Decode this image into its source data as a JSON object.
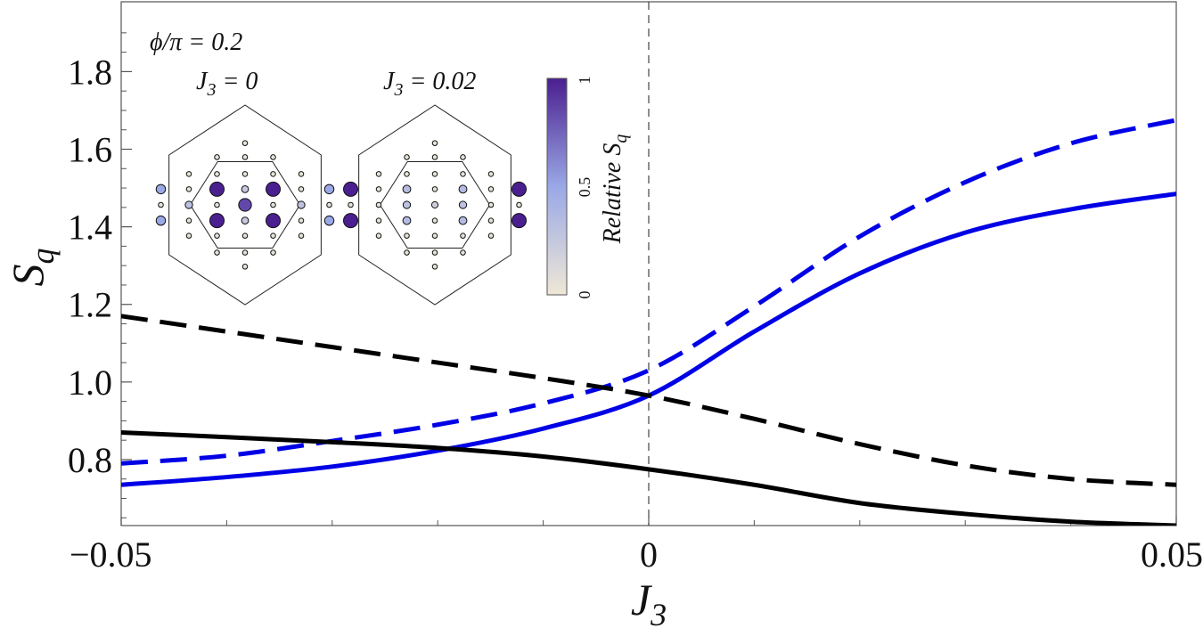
{
  "chart_data": {
    "type": "line",
    "xlabel": "J",
    "xlabel_sub": "3",
    "ylabel": "S",
    "ylabel_sub": "q",
    "xlim": [
      -0.05,
      0.05
    ],
    "ylim": [
      0.63,
      1.98
    ],
    "x_ticks": [
      -0.05,
      0,
      0.05
    ],
    "x_tick_labels": [
      "−0.05",
      "0",
      "0.05"
    ],
    "y_ticks": [
      0.8,
      1.0,
      1.2,
      1.4,
      1.6,
      1.8
    ],
    "y_tick_labels": [
      "0.8",
      "1.0",
      "1.2",
      "1.4",
      "1.6",
      "1.8"
    ],
    "grid": false,
    "reference_line": {
      "x": 0,
      "style": "dashed"
    },
    "series": [
      {
        "color": "#0000e6",
        "dash": "solid",
        "x": [
          -0.05,
          -0.04,
          -0.03,
          -0.02,
          -0.01,
          0,
          0.01,
          0.02,
          0.03,
          0.04,
          0.05
        ],
        "y": [
          0.735,
          0.755,
          0.782,
          0.823,
          0.88,
          0.965,
          1.13,
          1.28,
          1.385,
          1.445,
          1.485
        ]
      },
      {
        "color": "#0000e6",
        "dash": "dashed",
        "x": [
          -0.05,
          -0.04,
          -0.03,
          -0.02,
          -0.01,
          0,
          0.01,
          0.02,
          0.03,
          0.04,
          0.05
        ],
        "y": [
          0.79,
          0.81,
          0.848,
          0.89,
          0.945,
          1.03,
          1.195,
          1.375,
          1.515,
          1.615,
          1.675
        ]
      },
      {
        "color": "#000000",
        "dash": "solid",
        "x": [
          -0.05,
          -0.04,
          -0.03,
          -0.02,
          -0.01,
          0,
          0.01,
          0.02,
          0.03,
          0.04,
          0.05
        ],
        "y": [
          0.87,
          0.858,
          0.845,
          0.83,
          0.808,
          0.775,
          0.735,
          0.688,
          0.66,
          0.64,
          0.63
        ]
      },
      {
        "color": "#000000",
        "dash": "dashed",
        "x": [
          -0.05,
          -0.04,
          -0.03,
          -0.02,
          -0.01,
          0,
          0.01,
          0.02,
          0.03,
          0.04,
          0.05
        ],
        "y": [
          1.17,
          1.13,
          1.09,
          1.05,
          1.01,
          0.965,
          0.905,
          0.84,
          0.785,
          0.75,
          0.735
        ]
      }
    ],
    "inset": {
      "title": "ϕ/π = 0.2",
      "panels": [
        {
          "label": "J",
          "label_sub": "3",
          "label_value": " = 0",
          "dots": [
            [
              0,
              0.85,
              0.05
            ],
            [
              -0.5,
              0.85,
              0.05
            ],
            [
              0.5,
              0.85,
              0.05
            ],
            [
              0,
              0.55,
              0.05
            ],
            [
              -0.5,
              0.55,
              0.05
            ],
            [
              0.5,
              0.55,
              0.05
            ],
            [
              -1,
              0.55,
              0.05
            ],
            [
              1,
              0.55,
              0.05
            ],
            [
              0,
              0.28,
              0.25
            ],
            [
              -1,
              0.28,
              0.05
            ],
            [
              1,
              0.28,
              0.05
            ],
            [
              -0.5,
              0.28,
              1.0
            ],
            [
              0.5,
              0.28,
              1.0
            ],
            [
              -1.5,
              0.28,
              0.5
            ],
            [
              1.5,
              0.28,
              0.5
            ],
            [
              0,
              0,
              0.85
            ],
            [
              -1,
              0,
              0.3
            ],
            [
              1,
              0,
              0.3
            ],
            [
              -0.5,
              0,
              0.05
            ],
            [
              0.5,
              0,
              0.05
            ],
            [
              -1.5,
              0,
              0.05
            ],
            [
              1.5,
              0,
              0.05
            ],
            [
              0,
              -0.28,
              0.25
            ],
            [
              -0.5,
              -0.28,
              1.0
            ],
            [
              0.5,
              -0.28,
              1.0
            ],
            [
              -1.5,
              -0.28,
              0.5
            ],
            [
              1.5,
              -0.28,
              0.5
            ],
            [
              -1,
              -0.28,
              0.05
            ],
            [
              1,
              -0.28,
              0.05
            ],
            [
              0,
              -0.55,
              0.05
            ],
            [
              -0.5,
              -0.55,
              0.05
            ],
            [
              0.5,
              -0.55,
              0.05
            ],
            [
              -1,
              -0.55,
              0.05
            ],
            [
              1,
              -0.55,
              0.05
            ],
            [
              0,
              -0.85,
              0.05
            ],
            [
              -0.5,
              -0.85,
              0.05
            ],
            [
              0.5,
              -0.85,
              0.05
            ],
            [
              0,
              -1.1,
              0.05
            ],
            [
              0,
              1.1,
              0.05
            ]
          ]
        },
        {
          "label": "J",
          "label_sub": "3",
          "label_value": " = 0.02",
          "dots": [
            [
              0,
              0.85,
              0.05
            ],
            [
              -0.5,
              0.85,
              0.05
            ],
            [
              0.5,
              0.85,
              0.05
            ],
            [
              0,
              0.55,
              0.05
            ],
            [
              -0.5,
              0.55,
              0.05
            ],
            [
              0.5,
              0.55,
              0.05
            ],
            [
              -1,
              0.55,
              0.05
            ],
            [
              1,
              0.55,
              0.05
            ],
            [
              0,
              0.28,
              0.05
            ],
            [
              -0.5,
              0.28,
              0.35
            ],
            [
              0.5,
              0.28,
              0.35
            ],
            [
              -1,
              0.28,
              0.05
            ],
            [
              1,
              0.28,
              0.05
            ],
            [
              -1.5,
              0.28,
              1.0
            ],
            [
              1.5,
              0.28,
              1.0
            ],
            [
              0,
              0,
              0.2
            ],
            [
              -0.5,
              0,
              0.3
            ],
            [
              0.5,
              0,
              0.3
            ],
            [
              -1,
              0,
              0.05
            ],
            [
              1,
              0,
              0.05
            ],
            [
              -1.5,
              0,
              0.05
            ],
            [
              1.5,
              0,
              0.05
            ],
            [
              0,
              -0.28,
              0.05
            ],
            [
              -0.5,
              -0.28,
              0.35
            ],
            [
              0.5,
              -0.28,
              0.35
            ],
            [
              -1,
              -0.28,
              0.05
            ],
            [
              1,
              -0.28,
              0.05
            ],
            [
              -1.5,
              -0.28,
              1.0
            ],
            [
              1.5,
              -0.28,
              1.0
            ],
            [
              0,
              -0.55,
              0.05
            ],
            [
              -0.5,
              -0.55,
              0.05
            ],
            [
              0.5,
              -0.55,
              0.05
            ],
            [
              -1,
              -0.55,
              0.05
            ],
            [
              1,
              -0.55,
              0.05
            ],
            [
              0,
              -0.85,
              0.05
            ],
            [
              -0.5,
              -0.85,
              0.05
            ],
            [
              0.5,
              -0.85,
              0.05
            ],
            [
              0,
              -1.1,
              0.05
            ],
            [
              0,
              1.1,
              0.05
            ]
          ]
        }
      ],
      "colorbar": {
        "title": "Relative S",
        "title_sub": "q",
        "ticks": [
          "0",
          "0.5",
          "1"
        ],
        "color_low": "#efe8d6",
        "color_mid": "#9aa8e6",
        "color_high": "#4a1f8f"
      }
    }
  }
}
